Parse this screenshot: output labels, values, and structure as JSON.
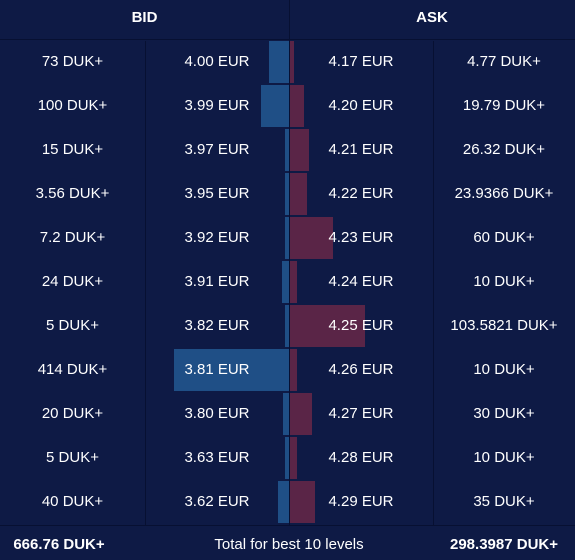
{
  "header": {
    "bid_label": "BID",
    "ask_label": "ASK"
  },
  "colors": {
    "background": "#0e1a45",
    "bid_bar": "#1f4f86",
    "ask_bar": "#5a2547",
    "separator": "#071032",
    "text": "#ffffff"
  },
  "rows": [
    {
      "bid_size": "73 DUK+",
      "bid_price": "4.00 EUR",
      "ask_price": "4.17 EUR",
      "ask_size": "4.77 DUK+"
    },
    {
      "bid_size": "100 DUK+",
      "bid_price": "3.99 EUR",
      "ask_price": "4.20 EUR",
      "ask_size": "19.79 DUK+"
    },
    {
      "bid_size": "15 DUK+",
      "bid_price": "3.97 EUR",
      "ask_price": "4.21 EUR",
      "ask_size": "26.32 DUK+"
    },
    {
      "bid_size": "3.56 DUK+",
      "bid_price": "3.95 EUR",
      "ask_price": "4.22 EUR",
      "ask_size": "23.9366 DUK+"
    },
    {
      "bid_size": "7.2 DUK+",
      "bid_price": "3.92 EUR",
      "ask_price": "4.23 EUR",
      "ask_size": "60 DUK+"
    },
    {
      "bid_size": "24 DUK+",
      "bid_price": "3.91 EUR",
      "ask_price": "4.24 EUR",
      "ask_size": "10 DUK+"
    },
    {
      "bid_size": "5 DUK+",
      "bid_price": "3.82 EUR",
      "ask_price": "4.25 EUR",
      "ask_size": "103.5821 DUK+"
    },
    {
      "bid_size": "414 DUK+",
      "bid_price": "3.81 EUR",
      "ask_price": "4.26 EUR",
      "ask_size": "10 DUK+"
    },
    {
      "bid_size": "20 DUK+",
      "bid_price": "3.80 EUR",
      "ask_price": "4.27 EUR",
      "ask_size": "30 DUK+"
    },
    {
      "bid_size": "5 DUK+",
      "bid_price": "3.63 EUR",
      "ask_price": "4.28 EUR",
      "ask_size": "10 DUK+"
    },
    {
      "bid_size": "40 DUK+",
      "bid_price": "3.62 EUR",
      "ask_price": "4.29 EUR",
      "ask_size": "35 DUK+"
    }
  ],
  "depth": {
    "bid_sizes": [
      73,
      100,
      15,
      3.56,
      7.2,
      24,
      5,
      414,
      20,
      5,
      40
    ],
    "ask_sizes": [
      4.77,
      19.79,
      26.32,
      23.9366,
      60,
      10,
      103.5821,
      10,
      30,
      10,
      35
    ]
  },
  "footer": {
    "bid_total": "666.76 DUK+",
    "label": "Total for best 10 levels",
    "ask_total": "298.3987 DUK+"
  }
}
